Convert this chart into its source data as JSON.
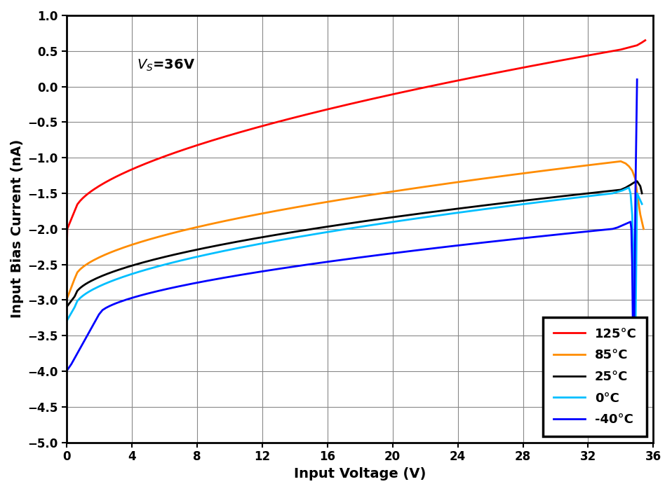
{
  "title": "V_S=36V",
  "xlabel": "Input Voltage (V)",
  "ylabel": "Input Bias Current (nA)",
  "xlim": [
    0,
    36
  ],
  "ylim": [
    -5,
    1
  ],
  "xticks": [
    0,
    4,
    8,
    12,
    16,
    20,
    24,
    28,
    32,
    36
  ],
  "yticks": [
    -5,
    -4.5,
    -4,
    -3.5,
    -3,
    -2.5,
    -2,
    -1.5,
    -1,
    -0.5,
    0,
    0.5,
    1
  ],
  "annotation": "Vₛ=36V",
  "legend_labels": [
    "125°C",
    "85°C",
    "25°C",
    "0°C",
    "-40°C"
  ],
  "colors": [
    "#ff0000",
    "#ff8c00",
    "#000000",
    "#00bfff",
    "#0000ff"
  ],
  "background": "#ffffff",
  "linewidth": 2.0
}
